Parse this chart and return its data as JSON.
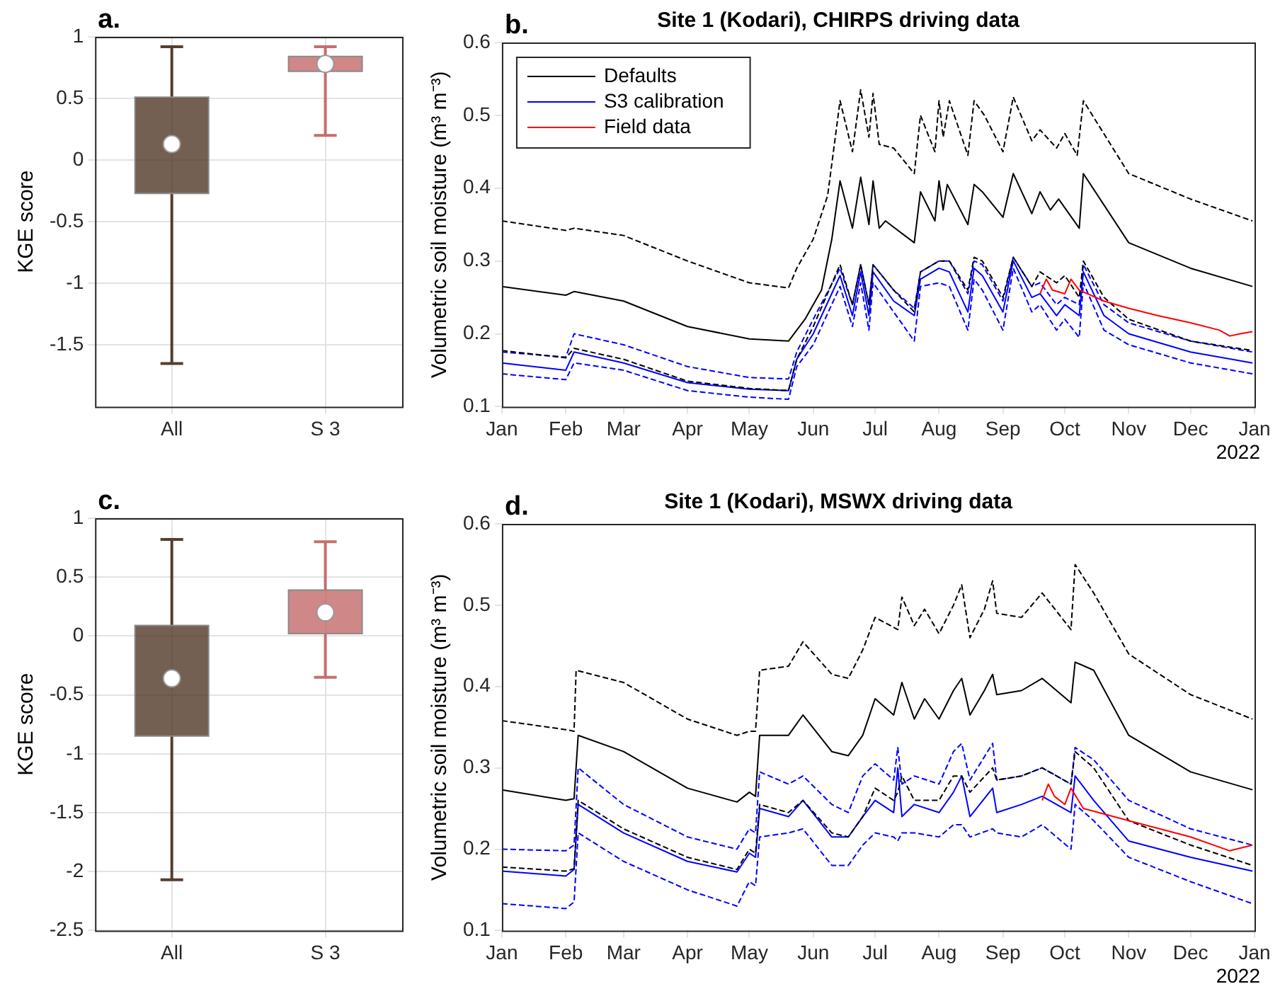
{
  "chart_data": [
    {
      "type": "box",
      "ylabel": "KGE score",
      "categories": [
        "All",
        "S 3"
      ],
      "colors": [
        "#45291a",
        "#c05f5f"
      ],
      "ylim": [
        -2,
        1
      ],
      "yticks": [
        -1.5,
        -1,
        -0.5,
        0,
        0.5,
        1
      ],
      "grid": true,
      "annotations": [
        "a."
      ],
      "boxes": [
        {
          "low": -1.65,
          "q1": -0.27,
          "median": 0.13,
          "q3": 0.51,
          "high": 0.92
        },
        {
          "low": 0.2,
          "q1": 0.72,
          "median": 0.78,
          "q3": 0.84,
          "high": 0.92
        }
      ]
    },
    {
      "type": "line",
      "title": "Site 1 (Kodari), CHIRPS driving data",
      "ylabel": "Volumetric soil moisture (m³ m⁻³)",
      "xlim": [
        "2021-01-01",
        "2022-01-01"
      ],
      "xticks": [
        {
          "value": "2021-01-01",
          "label": "Jan"
        },
        {
          "value": "2021-02-01",
          "label": "Feb"
        },
        {
          "value": "2021-03-01",
          "label": "Mar"
        },
        {
          "value": "2021-04-01",
          "label": "Apr"
        },
        {
          "value": "2021-05-01",
          "label": "May"
        },
        {
          "value": "2021-06-01",
          "label": "Jun"
        },
        {
          "value": "2021-07-01",
          "label": "Jul"
        },
        {
          "value": "2021-08-01",
          "label": "Aug"
        },
        {
          "value": "2021-09-01",
          "label": "Sep"
        },
        {
          "value": "2021-10-01",
          "label": "Oct"
        },
        {
          "value": "2021-11-01",
          "label": "Nov"
        },
        {
          "value": "2021-12-01",
          "label": "Dec"
        },
        {
          "value": "2022-01-01",
          "label": "Jan"
        }
      ],
      "ylim": [
        0.1,
        0.6
      ],
      "yticks": [
        0.1,
        0.2,
        0.3,
        0.4,
        0.5,
        0.6
      ],
      "legend": "top left",
      "annotations": [
        "b.",
        "2022"
      ],
      "x": [
        "2021-01-01",
        "2021-02-01",
        "2021-02-05",
        "2021-03-01",
        "2021-04-01",
        "2021-05-01",
        "2021-05-20",
        "2021-05-24",
        "2021-06-01",
        "2021-06-14",
        "2021-06-20",
        "2021-06-24",
        "2021-06-28",
        "2021-06-30",
        "2021-07-10",
        "2021-07-20",
        "2021-07-23",
        "2021-08-01",
        "2021-08-06",
        "2021-08-15",
        "2021-08-18",
        "2021-08-22",
        "2021-09-01",
        "2021-09-06",
        "2021-09-15",
        "2021-09-19",
        "2021-09-27",
        "2021-10-01",
        "2021-10-08",
        "2021-10-10",
        "2021-10-20",
        "2021-11-01",
        "2021-12-01",
        "2021-12-31"
      ],
      "series": [
        {
          "color": "#000000",
          "line_style": "dashed",
          "x": [
            "2021-01-01",
            "2021-02-01",
            "2021-02-05",
            "2021-03-01",
            "2021-04-01",
            "2021-05-01",
            "2021-05-20",
            "2021-05-24",
            "2021-06-01",
            "2021-06-08",
            "2021-06-14",
            "2021-06-20",
            "2021-06-24",
            "2021-06-28",
            "2021-06-30",
            "2021-07-03",
            "2021-07-10",
            "2021-07-20",
            "2021-07-23",
            "2021-07-30",
            "2021-08-01",
            "2021-08-03",
            "2021-08-06",
            "2021-08-15",
            "2021-08-18",
            "2021-08-23",
            "2021-09-01",
            "2021-09-06",
            "2021-09-15",
            "2021-09-19",
            "2021-09-27",
            "2021-10-01",
            "2021-10-07",
            "2021-10-10",
            "2021-11-01",
            "2021-12-01",
            "2021-12-31"
          ],
          "values": [
            0.355,
            0.342,
            0.345,
            0.335,
            0.3,
            0.27,
            0.263,
            0.29,
            0.33,
            0.39,
            0.52,
            0.45,
            0.535,
            0.47,
            0.53,
            0.46,
            0.455,
            0.42,
            0.5,
            0.45,
            0.52,
            0.47,
            0.52,
            0.445,
            0.52,
            0.5,
            0.45,
            0.525,
            0.465,
            0.48,
            0.455,
            0.475,
            0.445,
            0.52,
            0.42,
            0.385,
            0.355
          ]
        },
        {
          "name": "Defaults",
          "color": "#000000",
          "line_style": "solid",
          "x": [
            "2021-01-01",
            "2021-02-01",
            "2021-02-05",
            "2021-03-01",
            "2021-04-01",
            "2021-05-01",
            "2021-05-20",
            "2021-05-28",
            "2021-06-05",
            "2021-06-10",
            "2021-06-14",
            "2021-06-20",
            "2021-06-24",
            "2021-06-28",
            "2021-06-30",
            "2021-07-03",
            "2021-07-06",
            "2021-07-20",
            "2021-07-23",
            "2021-07-30",
            "2021-08-01",
            "2021-08-03",
            "2021-08-05",
            "2021-08-15",
            "2021-08-18",
            "2021-08-22",
            "2021-09-01",
            "2021-09-06",
            "2021-09-15",
            "2021-09-19",
            "2021-09-24",
            "2021-09-28",
            "2021-10-08",
            "2021-10-10",
            "2021-11-01",
            "2021-12-01",
            "2021-12-31"
          ],
          "values": [
            0.265,
            0.253,
            0.258,
            0.245,
            0.21,
            0.193,
            0.19,
            0.22,
            0.26,
            0.33,
            0.41,
            0.345,
            0.415,
            0.35,
            0.41,
            0.345,
            0.355,
            0.325,
            0.395,
            0.355,
            0.41,
            0.37,
            0.405,
            0.35,
            0.405,
            0.395,
            0.36,
            0.42,
            0.365,
            0.395,
            0.37,
            0.385,
            0.345,
            0.42,
            0.325,
            0.29,
            0.265
          ]
        },
        {
          "color": "#000000",
          "line_style": "dashed",
          "values": [
            0.177,
            0.167,
            0.18,
            0.165,
            0.135,
            0.125,
            0.122,
            0.165,
            0.21,
            0.295,
            0.24,
            0.295,
            0.24,
            0.295,
            0.26,
            0.23,
            0.285,
            0.3,
            0.3,
            0.26,
            0.305,
            0.3,
            0.25,
            0.305,
            0.265,
            0.285,
            0.27,
            0.28,
            0.25,
            0.3,
            0.25,
            0.22,
            0.19,
            0.177
          ]
        },
        {
          "color": "#0000ff",
          "line_style": "dashed",
          "values": [
            0.175,
            0.168,
            0.2,
            0.185,
            0.155,
            0.14,
            0.138,
            0.175,
            0.22,
            0.29,
            0.24,
            0.295,
            0.24,
            0.295,
            0.26,
            0.235,
            0.285,
            0.3,
            0.3,
            0.255,
            0.3,
            0.295,
            0.245,
            0.305,
            0.265,
            0.27,
            0.24,
            0.25,
            0.24,
            0.295,
            0.24,
            0.215,
            0.19,
            0.175
          ]
        },
        {
          "name": "S3 calibration",
          "color": "#0000ff",
          "line_style": "solid",
          "values": [
            0.16,
            0.15,
            0.175,
            0.16,
            0.133,
            0.124,
            0.122,
            0.165,
            0.2,
            0.28,
            0.225,
            0.285,
            0.225,
            0.285,
            0.245,
            0.225,
            0.275,
            0.29,
            0.285,
            0.23,
            0.29,
            0.28,
            0.23,
            0.3,
            0.25,
            0.255,
            0.225,
            0.24,
            0.225,
            0.285,
            0.225,
            0.2,
            0.175,
            0.16
          ]
        },
        {
          "color": "#0000ff",
          "line_style": "dashed",
          "values": [
            0.145,
            0.137,
            0.16,
            0.15,
            0.122,
            0.113,
            0.11,
            0.155,
            0.185,
            0.265,
            0.21,
            0.27,
            0.205,
            0.27,
            0.23,
            0.19,
            0.265,
            0.27,
            0.265,
            0.205,
            0.275,
            0.26,
            0.205,
            0.29,
            0.23,
            0.24,
            0.205,
            0.22,
            0.195,
            0.27,
            0.205,
            0.185,
            0.16,
            0.145
          ]
        },
        {
          "name": "Field data",
          "color": "#ff0000",
          "line_style": "solid",
          "x": [
            "2021-09-19",
            "2021-09-22",
            "2021-09-25",
            "2021-10-01",
            "2021-10-04",
            "2021-10-08",
            "2021-10-20",
            "2021-11-01",
            "2021-11-15",
            "2021-12-01",
            "2021-12-15",
            "2021-12-20",
            "2021-12-25",
            "2021-12-31"
          ],
          "values": [
            0.255,
            0.275,
            0.26,
            0.255,
            0.275,
            0.26,
            0.245,
            0.235,
            0.225,
            0.215,
            0.205,
            0.197,
            0.2,
            0.203
          ]
        }
      ]
    },
    {
      "type": "box",
      "ylabel": "KGE score",
      "categories": [
        "All",
        "S 3"
      ],
      "colors": [
        "#45291a",
        "#c05f5f"
      ],
      "ylim": [
        -2.5,
        1
      ],
      "yticks": [
        -2.5,
        -2,
        -1.5,
        -1,
        -0.5,
        0,
        0.5,
        1
      ],
      "grid": true,
      "annotations": [
        "c."
      ],
      "boxes": [
        {
          "low": -2.07,
          "q1": -0.85,
          "median": -0.36,
          "q3": 0.09,
          "high": 0.82
        },
        {
          "low": -0.35,
          "q1": 0.02,
          "median": 0.2,
          "q3": 0.39,
          "high": 0.8
        }
      ]
    },
    {
      "type": "line",
      "title": "Site 1 (Kodari), MSWX driving data",
      "ylabel": "Volumetric soil moisture (m³ m⁻³)",
      "xlim": [
        "2021-01-01",
        "2022-01-01"
      ],
      "xticks": [
        {
          "value": "2021-01-01",
          "label": "Jan"
        },
        {
          "value": "2021-02-01",
          "label": "Feb"
        },
        {
          "value": "2021-03-01",
          "label": "Mar"
        },
        {
          "value": "2021-04-01",
          "label": "Apr"
        },
        {
          "value": "2021-05-01",
          "label": "May"
        },
        {
          "value": "2021-06-01",
          "label": "Jun"
        },
        {
          "value": "2021-07-01",
          "label": "Jul"
        },
        {
          "value": "2021-08-01",
          "label": "Aug"
        },
        {
          "value": "2021-09-01",
          "label": "Sep"
        },
        {
          "value": "2021-10-01",
          "label": "Oct"
        },
        {
          "value": "2021-11-01",
          "label": "Nov"
        },
        {
          "value": "2021-12-01",
          "label": "Dec"
        },
        {
          "value": "2022-01-01",
          "label": "Jan"
        }
      ],
      "ylim": [
        0.1,
        0.6
      ],
      "yticks": [
        0.1,
        0.2,
        0.3,
        0.4,
        0.5,
        0.6
      ],
      "annotations": [
        "d.",
        "2022"
      ],
      "x": [
        "2021-01-01",
        "2021-02-01",
        "2021-02-05",
        "2021-02-07",
        "2021-03-01",
        "2021-04-01",
        "2021-04-25",
        "2021-05-01",
        "2021-05-04",
        "2021-05-06",
        "2021-05-20",
        "2021-05-27",
        "2021-06-10",
        "2021-06-18",
        "2021-06-25",
        "2021-07-01",
        "2021-07-10",
        "2021-07-12",
        "2021-07-14",
        "2021-07-20",
        "2021-08-01",
        "2021-08-08",
        "2021-08-12",
        "2021-08-16",
        "2021-08-27",
        "2021-08-29",
        "2021-09-10",
        "2021-09-20",
        "2021-10-04",
        "2021-10-06",
        "2021-10-15",
        "2021-11-01",
        "2021-12-01",
        "2021-12-31"
      ],
      "series": [
        {
          "color": "#000000",
          "line_style": "dashed",
          "x": [
            "2021-01-01",
            "2021-02-01",
            "2021-02-05",
            "2021-02-06",
            "2021-03-01",
            "2021-04-01",
            "2021-04-25",
            "2021-05-01",
            "2021-05-04",
            "2021-05-06",
            "2021-05-20",
            "2021-05-27",
            "2021-06-10",
            "2021-06-18",
            "2021-06-25",
            "2021-07-01",
            "2021-07-12",
            "2021-07-14",
            "2021-07-20",
            "2021-07-25",
            "2021-08-01",
            "2021-08-08",
            "2021-08-12",
            "2021-08-16",
            "2021-08-23",
            "2021-08-27",
            "2021-08-29",
            "2021-09-10",
            "2021-09-20",
            "2021-10-04",
            "2021-10-06",
            "2021-10-15",
            "2021-11-01",
            "2021-12-01",
            "2021-12-31"
          ],
          "values": [
            0.358,
            0.347,
            0.345,
            0.42,
            0.405,
            0.36,
            0.34,
            0.345,
            0.345,
            0.42,
            0.425,
            0.455,
            0.415,
            0.41,
            0.445,
            0.485,
            0.47,
            0.51,
            0.475,
            0.495,
            0.465,
            0.5,
            0.525,
            0.46,
            0.495,
            0.53,
            0.49,
            0.485,
            0.515,
            0.47,
            0.55,
            0.515,
            0.44,
            0.39,
            0.36
          ]
        },
        {
          "color": "#000000",
          "line_style": "solid",
          "x": [
            "2021-01-01",
            "2021-02-01",
            "2021-02-05",
            "2021-02-07",
            "2021-03-01",
            "2021-04-01",
            "2021-04-25",
            "2021-05-01",
            "2021-05-04",
            "2021-05-06",
            "2021-05-20",
            "2021-05-27",
            "2021-06-10",
            "2021-06-18",
            "2021-06-25",
            "2021-07-01",
            "2021-07-10",
            "2021-07-14",
            "2021-07-20",
            "2021-07-25",
            "2021-08-01",
            "2021-08-08",
            "2021-08-12",
            "2021-08-16",
            "2021-08-23",
            "2021-08-27",
            "2021-08-29",
            "2021-09-10",
            "2021-09-20",
            "2021-10-04",
            "2021-10-06",
            "2021-10-15",
            "2021-11-01",
            "2021-12-01",
            "2021-12-31"
          ],
          "values": [
            0.273,
            0.26,
            0.262,
            0.34,
            0.32,
            0.275,
            0.258,
            0.27,
            0.265,
            0.34,
            0.34,
            0.365,
            0.32,
            0.315,
            0.34,
            0.385,
            0.365,
            0.405,
            0.36,
            0.385,
            0.36,
            0.395,
            0.41,
            0.365,
            0.395,
            0.415,
            0.39,
            0.395,
            0.41,
            0.38,
            0.43,
            0.42,
            0.34,
            0.295,
            0.273
          ]
        },
        {
          "color": "#000000",
          "line_style": "dashed",
          "values": [
            0.178,
            0.173,
            0.176,
            0.26,
            0.225,
            0.19,
            0.175,
            0.2,
            0.195,
            0.255,
            0.245,
            0.26,
            0.22,
            0.215,
            0.24,
            0.275,
            0.26,
            0.27,
            0.29,
            0.26,
            0.26,
            0.29,
            0.29,
            0.27,
            0.3,
            0.285,
            0.29,
            0.3,
            0.28,
            0.32,
            0.3,
            0.235,
            0.205,
            0.18
          ]
        },
        {
          "color": "#0000ff",
          "line_style": "dashed",
          "values": [
            0.2,
            0.198,
            0.205,
            0.3,
            0.255,
            0.215,
            0.2,
            0.225,
            0.22,
            0.295,
            0.28,
            0.29,
            0.255,
            0.245,
            0.29,
            0.305,
            0.285,
            0.325,
            0.28,
            0.29,
            0.28,
            0.32,
            0.33,
            0.285,
            0.33,
            0.285,
            0.29,
            0.3,
            0.28,
            0.325,
            0.31,
            0.26,
            0.225,
            0.205
          ]
        },
        {
          "color": "#0000ff",
          "line_style": "solid",
          "values": [
            0.173,
            0.167,
            0.175,
            0.255,
            0.22,
            0.185,
            0.172,
            0.195,
            0.19,
            0.25,
            0.24,
            0.26,
            0.215,
            0.215,
            0.24,
            0.26,
            0.245,
            0.3,
            0.24,
            0.255,
            0.245,
            0.27,
            0.29,
            0.24,
            0.275,
            0.245,
            0.255,
            0.265,
            0.245,
            0.29,
            0.26,
            0.21,
            0.19,
            0.173
          ]
        },
        {
          "color": "#0000ff",
          "line_style": "dashed",
          "values": [
            0.133,
            0.127,
            0.135,
            0.22,
            0.185,
            0.15,
            0.13,
            0.16,
            0.155,
            0.215,
            0.22,
            0.225,
            0.18,
            0.18,
            0.205,
            0.22,
            0.215,
            0.21,
            0.22,
            0.22,
            0.215,
            0.23,
            0.23,
            0.215,
            0.225,
            0.22,
            0.215,
            0.23,
            0.2,
            0.255,
            0.235,
            0.19,
            0.16,
            0.133
          ]
        },
        {
          "color": "#ff0000",
          "line_style": "solid",
          "x": [
            "2021-09-20",
            "2021-09-23",
            "2021-09-26",
            "2021-10-01",
            "2021-10-04",
            "2021-10-10",
            "2021-11-01",
            "2021-12-01",
            "2021-12-20",
            "2021-12-31"
          ],
          "values": [
            0.26,
            0.28,
            0.265,
            0.255,
            0.275,
            0.25,
            0.235,
            0.215,
            0.198,
            0.205
          ]
        }
      ]
    }
  ]
}
